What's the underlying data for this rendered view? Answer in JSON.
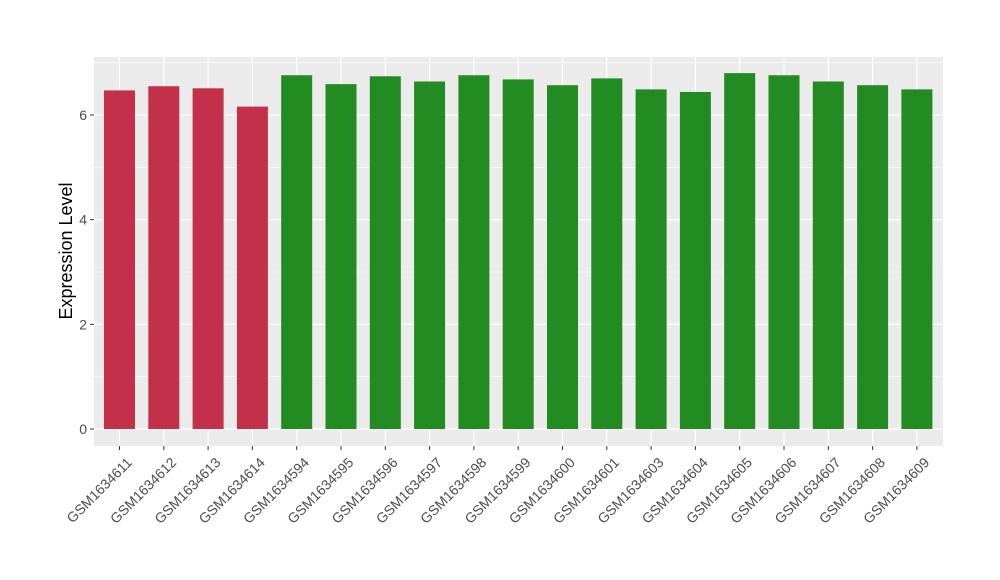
{
  "chart_data": {
    "type": "bar",
    "title": "",
    "xlabel": "",
    "ylabel": "Expression Level",
    "ylim": [
      0,
      7.1
    ],
    "y_ticks": [
      0,
      2,
      4,
      6
    ],
    "grid": true,
    "legend": "none",
    "categories": [
      "GSM1634611",
      "GSM1634612",
      "GSM1634613",
      "GSM1634614",
      "GSM1634594",
      "GSM1634595",
      "GSM1634596",
      "GSM1634597",
      "GSM1634598",
      "GSM1634599",
      "GSM1634600",
      "GSM1634601",
      "GSM1634603",
      "GSM1634604",
      "GSM1634605",
      "GSM1634606",
      "GSM1634607",
      "GSM1634608",
      "GSM1634609"
    ],
    "values": [
      6.47,
      6.55,
      6.51,
      6.16,
      6.76,
      6.59,
      6.74,
      6.64,
      6.76,
      6.68,
      6.57,
      6.7,
      6.49,
      6.44,
      6.8,
      6.76,
      6.64,
      6.57,
      6.49
    ],
    "groups": [
      "a",
      "a",
      "a",
      "a",
      "b",
      "b",
      "b",
      "b",
      "b",
      "b",
      "b",
      "b",
      "b",
      "b",
      "b",
      "b",
      "b",
      "b",
      "b"
    ],
    "colors": {
      "a": "#c3304a",
      "b": "#228b22",
      "panel": "#ebebeb",
      "grid": "#ffffff"
    }
  }
}
